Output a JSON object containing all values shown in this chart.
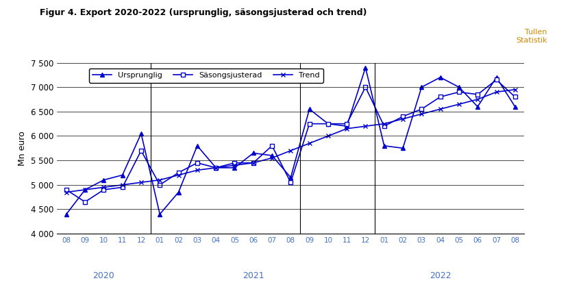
{
  "title": "Figur 4. Export 2020-2022 (ursprunglig, säsongsjusterad och trend)",
  "ylabel": "Mn euro",
  "watermark_line1": "Tullen",
  "watermark_line2": "Statistik",
  "ylim": [
    4000,
    7500
  ],
  "yticks": [
    4000,
    4500,
    5000,
    5500,
    6000,
    6500,
    7000,
    7500
  ],
  "line_color": "#0000CC",
  "months": [
    "08",
    "09",
    "10",
    "11",
    "12",
    "01",
    "02",
    "03",
    "04",
    "05",
    "06",
    "07",
    "08",
    "09",
    "10",
    "11",
    "12",
    "01",
    "02",
    "03",
    "04",
    "05",
    "06",
    "07",
    "08"
  ],
  "year_labels": [
    {
      "label": "2020",
      "index": 2
    },
    {
      "label": "2021",
      "index": 10
    },
    {
      "label": "2022",
      "index": 20
    }
  ],
  "year_separators": [
    4.5,
    12.5,
    16.5
  ],
  "ursprunglig": [
    4400,
    4900,
    5100,
    5200,
    6050,
    4400,
    4850,
    5800,
    5350,
    5350,
    5650,
    5600,
    5150,
    6550,
    6250,
    6200,
    7400,
    5800,
    5750,
    7000,
    7200,
    7000,
    6600,
    7200,
    6600
  ],
  "sasongsjusterad": [
    4900,
    4650,
    4900,
    4950,
    5700,
    5000,
    5250,
    5450,
    5350,
    5450,
    5450,
    5800,
    5050,
    6250,
    6250,
    6250,
    7000,
    6200,
    6400,
    6550,
    6800,
    6900,
    6850,
    7150,
    6800
  ],
  "trend": [
    4850,
    4900,
    4950,
    5000,
    5050,
    5100,
    5200,
    5300,
    5350,
    5400,
    5450,
    5550,
    5700,
    5850,
    6000,
    6150,
    6200,
    6250,
    6350,
    6450,
    6550,
    6650,
    6750,
    6900,
    6950
  ]
}
